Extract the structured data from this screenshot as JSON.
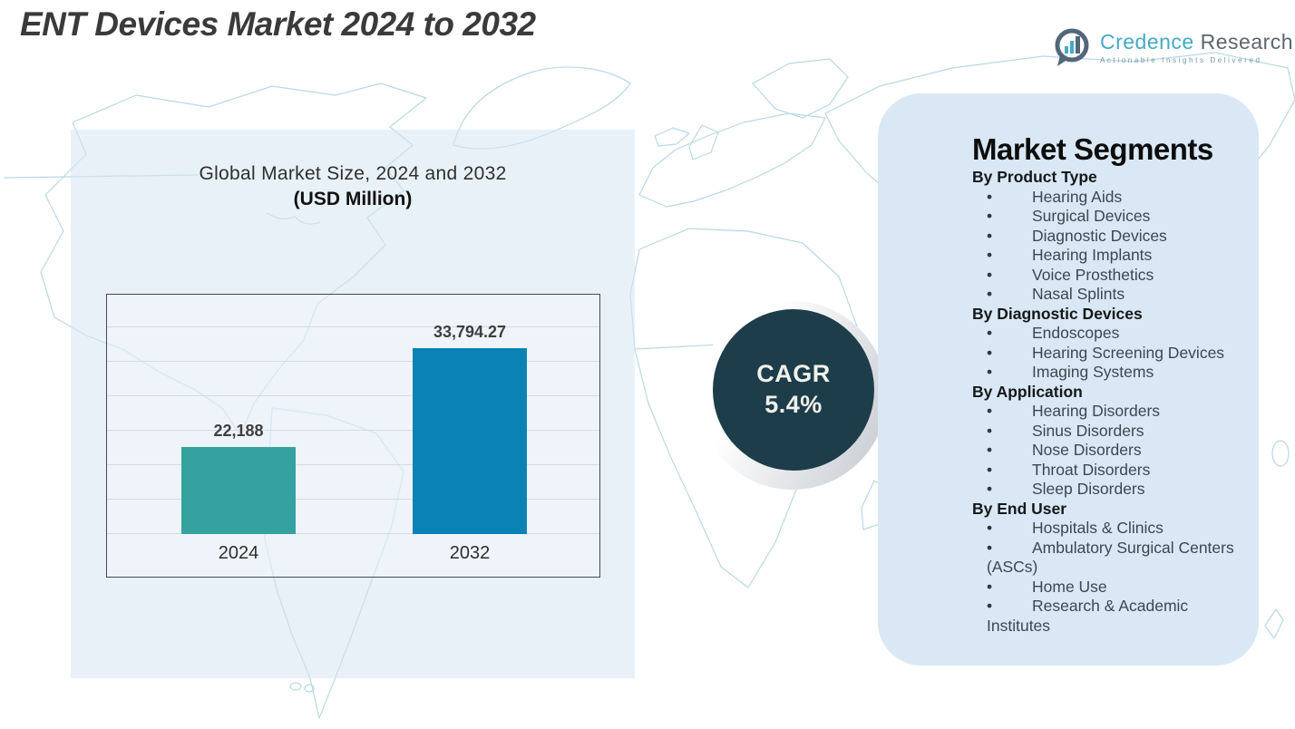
{
  "title": "ENT Devices Market 2024 to 2032",
  "logo": {
    "brand_primary": "Credence",
    "brand_secondary": "Research",
    "tagline": "Actionable Insights Delivered",
    "icon": "bar-chart-speech-bubble-icon",
    "colors": {
      "brand_teal": "#45aac5",
      "brand_gray": "#5c666e"
    }
  },
  "chart_data": {
    "type": "bar",
    "title": "Global Market Size, 2024 and 2032",
    "subtitle": "(USD Million)",
    "categories": [
      "2024",
      "2032"
    ],
    "values": [
      22188,
      33794.27
    ],
    "value_labels": [
      "22,188",
      "33,794.27"
    ],
    "series": [
      {
        "name": "Global Market Size (USD Million)",
        "values": [
          22188,
          33794.27
        ]
      }
    ],
    "bar_colors": [
      "#35a2a0",
      "#0a82b5"
    ],
    "xlabel": "",
    "ylabel": "",
    "unit": "USD Million",
    "ylim": [
      12000,
      40000
    ],
    "grid": true,
    "legend": "none"
  },
  "cagr": {
    "label": "CAGR",
    "value": "5.4%",
    "circle_color": "#1d3d4b",
    "text_color": "#f2efe9"
  },
  "segments": {
    "title": "Market Segments",
    "panel_color": "#d9e8f4",
    "groups": [
      {
        "heading": "By Product Type",
        "items": [
          "Hearing Aids",
          "Surgical Devices",
          "Diagnostic Devices",
          "Hearing Implants",
          "Voice Prosthetics",
          "Nasal Splints"
        ]
      },
      {
        "heading": "By Diagnostic Devices",
        "items": [
          "Endoscopes",
          "Hearing Screening Devices",
          "Imaging Systems"
        ]
      },
      {
        "heading": "By Application",
        "items": [
          "Hearing Disorders",
          "Sinus Disorders",
          "Nose Disorders",
          "Throat Disorders",
          "Sleep Disorders"
        ]
      },
      {
        "heading": "By End User",
        "items": [
          "Hospitals & Clinics",
          "Ambulatory Surgical Centers (ASCs)",
          "Home Use",
          "Research & Academic Institutes"
        ]
      }
    ]
  }
}
